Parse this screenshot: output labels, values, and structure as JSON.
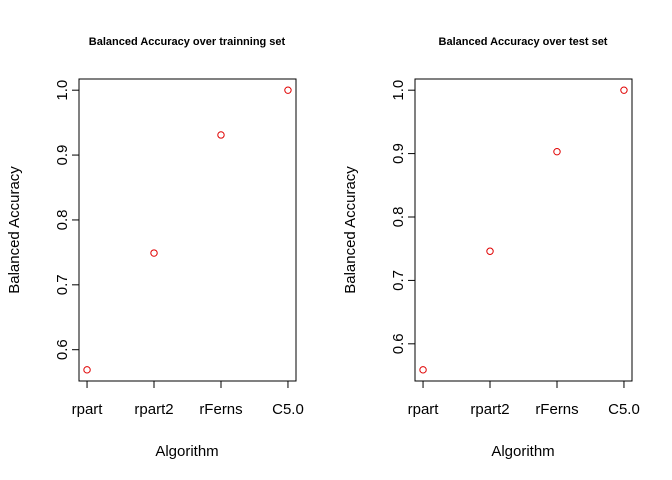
{
  "chart_data": [
    {
      "type": "scatter",
      "title": "Balanced Accuracy over trainning set",
      "xlabel": "Algorithm",
      "ylabel": "Balanced Accuracy",
      "categories": [
        "rpart",
        "rpart2",
        "rFerns",
        "C5.0"
      ],
      "values": [
        0.569,
        0.749,
        0.931,
        1.0
      ],
      "ylim": [
        0.569,
        1.0
      ],
      "yticks": [
        "0.6",
        "0.7",
        "0.8",
        "0.9",
        "1.0"
      ],
      "point_color": "#e00000",
      "grid": false
    },
    {
      "type": "scatter",
      "title": "Balanced Accuracy over test set",
      "xlabel": "Algorithm",
      "ylabel": "Balanced Accuracy",
      "categories": [
        "rpart",
        "rpart2",
        "rFerns",
        "C5.0"
      ],
      "values": [
        0.559,
        0.746,
        0.903,
        1.0
      ],
      "ylim": [
        0.559,
        1.0
      ],
      "yticks": [
        "0.6",
        "0.7",
        "0.8",
        "0.9",
        "1.0"
      ],
      "point_color": "#e00000",
      "grid": false
    }
  ]
}
